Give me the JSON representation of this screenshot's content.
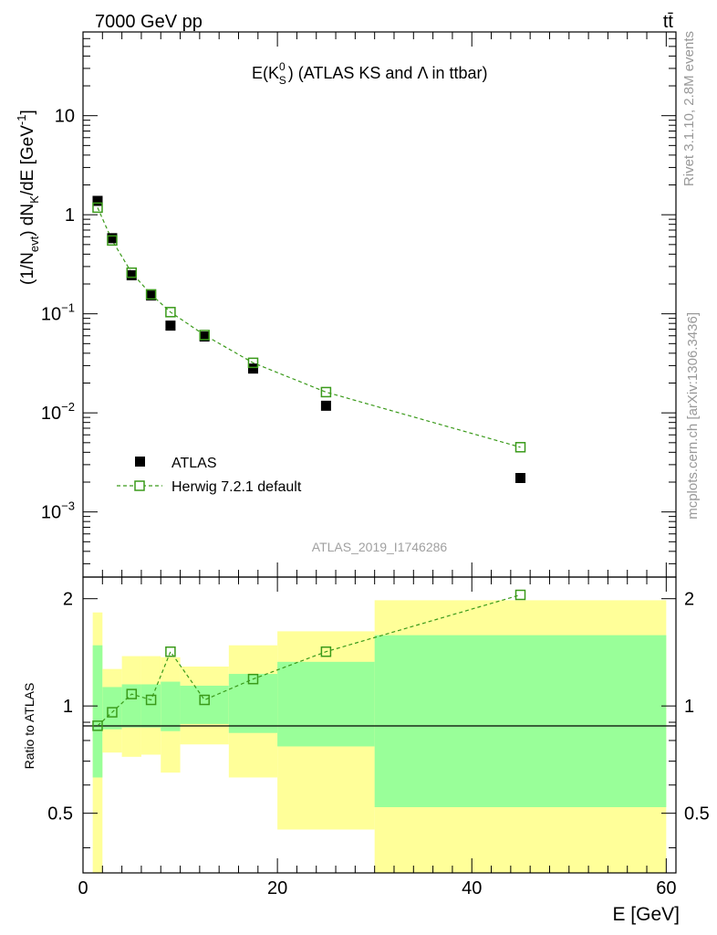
{
  "header": {
    "left": "7000 GeV pp",
    "right": "tt̄",
    "title_main": "E(K",
    "title_sup": "0",
    "title_sub": "S",
    "title_rest": ") (ATLAS KS and Λ in ttbar)",
    "analysis_id": "ATLAS_2019_I1746286",
    "side_rivet": "Rivet 3.1.10,  2.8M events",
    "side_mcplots": "mcplots.cern.ch [arXiv:1306.3436]"
  },
  "chart_data": [
    {
      "type": "scatter",
      "panel": "main",
      "yscale": "log",
      "ylim": [
        0.00022,
        70
      ],
      "xlim": [
        0,
        61
      ],
      "ylabel": "(1/N_evt) dN_K/dE [GeV^-1]",
      "yticks": [
        {
          "value": 0.001,
          "base": "10",
          "exp": "−3"
        },
        {
          "value": 0.01,
          "base": "10",
          "exp": "−2"
        },
        {
          "value": 0.1,
          "base": "10",
          "exp": "−1"
        },
        {
          "value": 1,
          "base": "1",
          "exp": ""
        },
        {
          "value": 10,
          "base": "10",
          "exp": ""
        }
      ],
      "legend_position": "lower-left",
      "series": [
        {
          "name": "ATLAS",
          "color": "#000000",
          "marker": "filled-square",
          "x": [
            1.5,
            3,
            5,
            7,
            9,
            12.5,
            17.5,
            25,
            45
          ],
          "y": [
            1.38,
            0.58,
            0.245,
            0.153,
            0.076,
            0.059,
            0.028,
            0.0118,
            0.0022
          ]
        },
        {
          "name": "Herwig 7.2.1 default",
          "color": "#3a9a1a",
          "marker": "open-square",
          "line": "dashed",
          "x": [
            1.5,
            3,
            5,
            7,
            9,
            12.5,
            17.5,
            25,
            45
          ],
          "y": [
            1.18,
            0.55,
            0.26,
            0.157,
            0.104,
            0.061,
            0.032,
            0.0162,
            0.0045
          ]
        }
      ]
    },
    {
      "type": "line",
      "panel": "ratio",
      "ylabel": "Ratio to ATLAS",
      "xlabel": "E [GeV]",
      "xlim": [
        0,
        61
      ],
      "ylim": [
        0.34,
        2.3
      ],
      "xticks": [
        0,
        20,
        40,
        60
      ],
      "yticks": [
        0.5,
        1,
        2
      ],
      "bins": [
        {
          "lo": 1,
          "hi": 2,
          "y_lo": 0.34,
          "y_hi": 1.83,
          "g_lo": 0.63,
          "g_hi": 1.48
        },
        {
          "lo": 2,
          "hi": 4,
          "y_lo": 0.74,
          "y_hi": 1.27,
          "g_lo": 0.86,
          "g_hi": 1.13
        },
        {
          "lo": 4,
          "hi": 6,
          "y_lo": 0.72,
          "y_hi": 1.38,
          "g_lo": 0.87,
          "g_hi": 1.15
        },
        {
          "lo": 6,
          "hi": 8,
          "y_lo": 0.73,
          "y_hi": 1.38,
          "g_lo": 0.87,
          "g_hi": 1.15
        },
        {
          "lo": 8,
          "hi": 10,
          "y_lo": 0.65,
          "y_hi": 1.37,
          "g_lo": 0.85,
          "g_hi": 1.17
        },
        {
          "lo": 10,
          "hi": 15,
          "y_lo": 0.78,
          "y_hi": 1.29,
          "g_lo": 0.89,
          "g_hi": 1.14
        },
        {
          "lo": 15,
          "hi": 20,
          "y_lo": 0.63,
          "y_hi": 1.48,
          "g_lo": 0.84,
          "g_hi": 1.23
        },
        {
          "lo": 20,
          "hi": 30,
          "y_lo": 0.45,
          "y_hi": 1.62,
          "g_lo": 0.77,
          "g_hi": 1.33
        },
        {
          "lo": 30,
          "hi": 60,
          "y_lo": 0.34,
          "y_hi": 1.98,
          "g_lo": 0.52,
          "g_hi": 1.58
        }
      ],
      "band_colors": {
        "outer": "#ffff99",
        "inner": "#99ff99"
      },
      "series": [
        {
          "name": "Herwig 7.2.1 default",
          "color": "#3a9a1a",
          "x": [
            1.5,
            3,
            5,
            7,
            9,
            12.5,
            17.5,
            25,
            45
          ],
          "y": [
            0.88,
            0.96,
            1.08,
            1.04,
            1.42,
            1.04,
            1.19,
            1.42,
            2.05
          ]
        }
      ]
    }
  ]
}
